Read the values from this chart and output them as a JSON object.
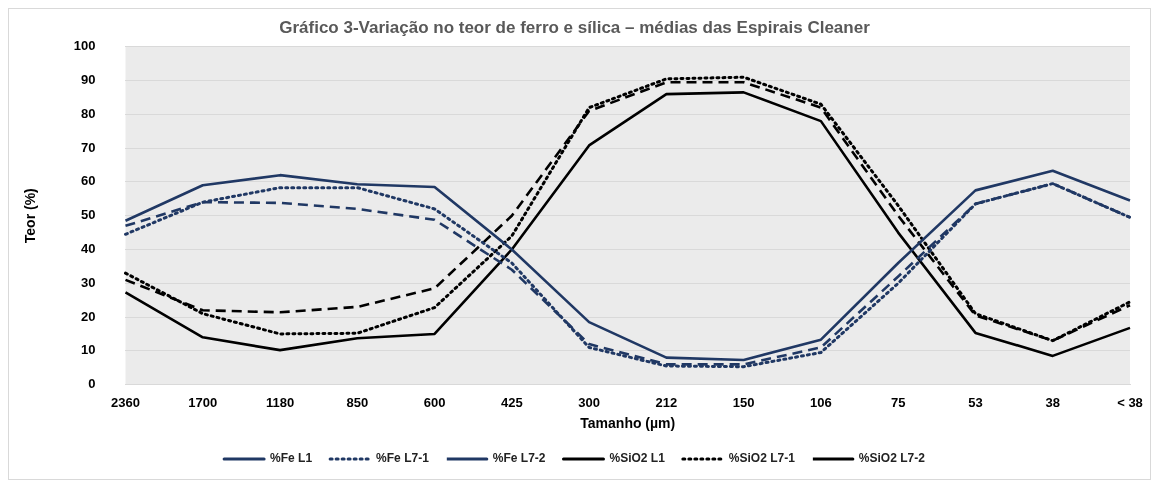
{
  "chart_data": {
    "type": "line",
    "title": "Gráfico 3-Variação no teor de ferro e sílica – médias das Espirais Cleaner",
    "xlabel": "Tamanho (µm)",
    "ylabel": "Teor (%)",
    "categories": [
      "2360",
      "1700",
      "1180",
      "850",
      "600",
      "425",
      "300",
      "212",
      "150",
      "106",
      "75",
      "53",
      "38",
      "< 38"
    ],
    "ylim": [
      0,
      100
    ],
    "yticks": [
      0,
      10,
      20,
      30,
      40,
      50,
      60,
      70,
      80,
      90,
      100
    ],
    "grid": "y",
    "legend": "bottom",
    "marker": "none",
    "series": [
      {
        "name": "%Fe L1",
        "color": "#203864",
        "line_style": "solid",
        "values": [
          48.5,
          59,
          62,
          59.3,
          58.5,
          40,
          18.5,
          8,
          7.3,
          13.3,
          36,
          57.5,
          63.3,
          54.5
        ]
      },
      {
        "name": "%Fe L7-1",
        "color": "#203864",
        "line_style": "dotted",
        "values": [
          44.5,
          54,
          58.3,
          58.3,
          52,
          36,
          11,
          5.5,
          5.3,
          9.5,
          30,
          53.5,
          59.5,
          49.5
        ]
      },
      {
        "name": "%Fe L7-2",
        "color": "#203864",
        "line_style": "dashed",
        "values": [
          47,
          54,
          53.8,
          52,
          48.8,
          34,
          12,
          6,
          6,
          11,
          32,
          53.5,
          59.5,
          49.5
        ]
      },
      {
        "name": "%SiO2 L1",
        "color": "#000000",
        "line_style": "solid",
        "values": [
          27.3,
          14,
          10.2,
          13.7,
          15,
          40,
          70.8,
          86,
          86.5,
          78,
          45,
          15.3,
          8.5,
          16.8
        ]
      },
      {
        "name": "%SiO2 L7-1",
        "color": "#000000",
        "line_style": "dotted",
        "values": [
          33,
          21,
          15,
          15.2,
          22.8,
          44,
          82,
          90.5,
          91,
          83,
          53,
          21,
          13,
          24.5
        ]
      },
      {
        "name": "%SiO2 L7-2",
        "color": "#000000",
        "line_style": "dashed",
        "values": [
          31,
          22,
          21.4,
          23,
          28.5,
          50,
          81,
          89.5,
          89.5,
          82,
          50,
          20.5,
          13,
          23.5
        ]
      }
    ]
  }
}
